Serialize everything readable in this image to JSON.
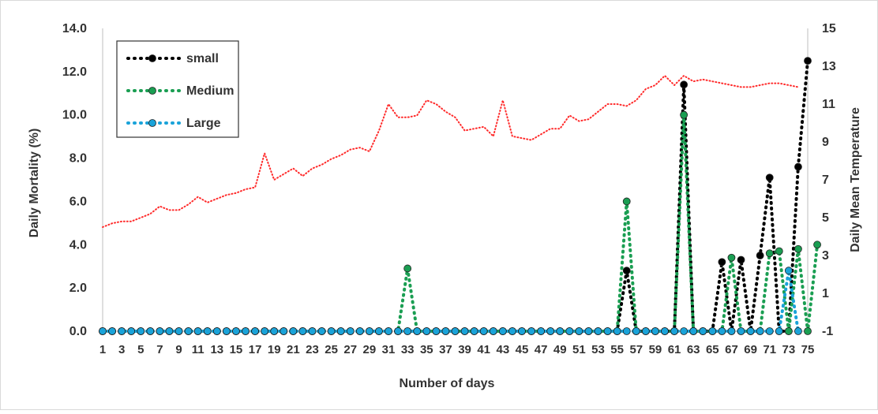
{
  "chart_data": {
    "type": "line",
    "xlabel": "Number of days",
    "ylabel": "Daily Mortality (%)",
    "y2label": "Daily Mean Temperature",
    "ylim": [
      0,
      14
    ],
    "y2lim": [
      -1,
      15
    ],
    "xlim": [
      1,
      75
    ],
    "yticks": [
      "0.0",
      "2.0",
      "4.0",
      "6.0",
      "8.0",
      "10.0",
      "12.0",
      "14.0"
    ],
    "y2ticks": [
      "-1",
      "1",
      "3",
      "5",
      "7",
      "9",
      "11",
      "13",
      "15"
    ],
    "xticks": [
      "1",
      "3",
      "5",
      "7",
      "9",
      "11",
      "13",
      "15",
      "17",
      "19",
      "21",
      "23",
      "25",
      "27",
      "29",
      "31",
      "33",
      "35",
      "37",
      "39",
      "41",
      "43",
      "45",
      "47",
      "49",
      "51",
      "53",
      "55",
      "57",
      "59",
      "61",
      "63",
      "65",
      "67",
      "69",
      "71",
      "73",
      "75"
    ],
    "grid": false,
    "legend_position": "top-left",
    "series": [
      {
        "name": "small",
        "color": "#000000",
        "marker": true,
        "axis": "left",
        "points": [
          [
            1,
            0
          ],
          [
            2,
            0
          ],
          [
            3,
            0
          ],
          [
            4,
            0
          ],
          [
            5,
            0
          ],
          [
            6,
            0
          ],
          [
            7,
            0
          ],
          [
            8,
            0
          ],
          [
            9,
            0
          ],
          [
            10,
            0
          ],
          [
            11,
            0
          ],
          [
            12,
            0
          ],
          [
            13,
            0
          ],
          [
            14,
            0
          ],
          [
            15,
            0
          ],
          [
            16,
            0
          ],
          [
            17,
            0
          ],
          [
            18,
            0
          ],
          [
            19,
            0
          ],
          [
            20,
            0
          ],
          [
            21,
            0
          ],
          [
            22,
            0
          ],
          [
            23,
            0
          ],
          [
            24,
            0
          ],
          [
            25,
            0
          ],
          [
            26,
            0
          ],
          [
            27,
            0
          ],
          [
            28,
            0
          ],
          [
            29,
            0
          ],
          [
            30,
            0
          ],
          [
            31,
            0
          ],
          [
            32,
            0
          ],
          [
            33,
            0
          ],
          [
            34,
            0
          ],
          [
            35,
            0
          ],
          [
            36,
            0
          ],
          [
            37,
            0
          ],
          [
            38,
            0
          ],
          [
            39,
            0
          ],
          [
            40,
            0
          ],
          [
            41,
            0
          ],
          [
            42,
            0
          ],
          [
            43,
            0
          ],
          [
            44,
            0
          ],
          [
            45,
            0
          ],
          [
            46,
            0
          ],
          [
            47,
            0
          ],
          [
            48,
            0
          ],
          [
            49,
            0
          ],
          [
            50,
            0
          ],
          [
            51,
            0
          ],
          [
            52,
            0
          ],
          [
            53,
            0
          ],
          [
            54,
            0
          ],
          [
            55,
            0
          ],
          [
            56,
            2.8
          ],
          [
            57,
            0
          ],
          [
            58,
            0
          ],
          [
            59,
            0
          ],
          [
            60,
            0
          ],
          [
            61,
            0
          ],
          [
            62,
            11.4
          ],
          [
            63,
            0
          ],
          [
            64,
            0
          ],
          [
            65,
            0
          ],
          [
            66,
            3.2
          ],
          [
            67,
            0
          ],
          [
            68,
            3.3
          ],
          [
            69,
            0
          ],
          [
            70,
            3.5
          ],
          [
            71,
            7.1
          ],
          [
            72,
            0
          ],
          [
            73,
            0
          ],
          [
            74,
            7.6
          ],
          [
            75,
            12.5
          ]
        ]
      },
      {
        "name": "Medium",
        "color": "#1a9e52",
        "marker": true,
        "axis": "left",
        "points": [
          [
            1,
            0
          ],
          [
            2,
            0
          ],
          [
            3,
            0
          ],
          [
            4,
            0
          ],
          [
            5,
            0
          ],
          [
            6,
            0
          ],
          [
            7,
            0
          ],
          [
            8,
            0
          ],
          [
            9,
            0
          ],
          [
            10,
            0
          ],
          [
            11,
            0
          ],
          [
            12,
            0
          ],
          [
            13,
            0
          ],
          [
            14,
            0
          ],
          [
            15,
            0
          ],
          [
            16,
            0
          ],
          [
            17,
            0
          ],
          [
            18,
            0
          ],
          [
            19,
            0
          ],
          [
            20,
            0
          ],
          [
            21,
            0
          ],
          [
            22,
            0
          ],
          [
            23,
            0
          ],
          [
            24,
            0
          ],
          [
            25,
            0
          ],
          [
            26,
            0
          ],
          [
            27,
            0
          ],
          [
            28,
            0
          ],
          [
            29,
            0
          ],
          [
            30,
            0
          ],
          [
            31,
            0
          ],
          [
            32,
            0
          ],
          [
            33,
            2.9
          ],
          [
            34,
            0
          ],
          [
            35,
            0
          ],
          [
            36,
            0
          ],
          [
            37,
            0
          ],
          [
            38,
            0
          ],
          [
            39,
            0
          ],
          [
            40,
            0
          ],
          [
            41,
            0
          ],
          [
            42,
            0
          ],
          [
            43,
            0
          ],
          [
            44,
            0
          ],
          [
            45,
            0
          ],
          [
            46,
            0
          ],
          [
            47,
            0
          ],
          [
            48,
            0
          ],
          [
            49,
            0
          ],
          [
            50,
            0
          ],
          [
            51,
            0
          ],
          [
            52,
            0
          ],
          [
            53,
            0
          ],
          [
            54,
            0
          ],
          [
            55,
            0
          ],
          [
            56,
            6.0
          ],
          [
            57,
            0
          ],
          [
            58,
            0
          ],
          [
            59,
            0
          ],
          [
            60,
            0
          ],
          [
            61,
            0
          ],
          [
            62,
            10.0
          ],
          [
            63,
            0
          ],
          [
            64,
            0
          ],
          [
            65,
            0
          ],
          [
            66,
            0
          ],
          [
            67,
            3.4
          ],
          [
            68,
            0
          ],
          [
            69,
            0
          ],
          [
            70,
            0
          ],
          [
            71,
            3.6
          ],
          [
            72,
            3.7
          ],
          [
            73,
            0
          ],
          [
            74,
            3.8
          ],
          [
            75,
            0
          ],
          [
            76,
            4.0
          ]
        ]
      },
      {
        "name": "Large",
        "color": "#1aa3d9",
        "marker": true,
        "axis": "left",
        "points": [
          [
            1,
            0
          ],
          [
            2,
            0
          ],
          [
            3,
            0
          ],
          [
            4,
            0
          ],
          [
            5,
            0
          ],
          [
            6,
            0
          ],
          [
            7,
            0
          ],
          [
            8,
            0
          ],
          [
            9,
            0
          ],
          [
            10,
            0
          ],
          [
            11,
            0
          ],
          [
            12,
            0
          ],
          [
            13,
            0
          ],
          [
            14,
            0
          ],
          [
            15,
            0
          ],
          [
            16,
            0
          ],
          [
            17,
            0
          ],
          [
            18,
            0
          ],
          [
            19,
            0
          ],
          [
            20,
            0
          ],
          [
            21,
            0
          ],
          [
            22,
            0
          ],
          [
            23,
            0
          ],
          [
            24,
            0
          ],
          [
            25,
            0
          ],
          [
            26,
            0
          ],
          [
            27,
            0
          ],
          [
            28,
            0
          ],
          [
            29,
            0
          ],
          [
            30,
            0
          ],
          [
            31,
            0
          ],
          [
            32,
            0
          ],
          [
            33,
            0
          ],
          [
            34,
            0
          ],
          [
            35,
            0
          ],
          [
            36,
            0
          ],
          [
            37,
            0
          ],
          [
            38,
            0
          ],
          [
            39,
            0
          ],
          [
            40,
            0
          ],
          [
            41,
            0
          ],
          [
            42,
            0
          ],
          [
            43,
            0
          ],
          [
            44,
            0
          ],
          [
            45,
            0
          ],
          [
            46,
            0
          ],
          [
            47,
            0
          ],
          [
            48,
            0
          ],
          [
            49,
            0
          ],
          [
            50,
            0
          ],
          [
            51,
            0
          ],
          [
            52,
            0
          ],
          [
            53,
            0
          ],
          [
            54,
            0
          ],
          [
            55,
            0
          ],
          [
            56,
            0
          ],
          [
            57,
            0
          ],
          [
            58,
            0
          ],
          [
            59,
            0
          ],
          [
            60,
            0
          ],
          [
            61,
            0
          ],
          [
            62,
            0
          ],
          [
            63,
            0
          ],
          [
            64,
            0
          ],
          [
            65,
            0
          ],
          [
            66,
            0
          ],
          [
            67,
            0
          ],
          [
            68,
            0
          ],
          [
            69,
            0
          ],
          [
            70,
            0
          ],
          [
            71,
            0
          ],
          [
            72,
            0
          ],
          [
            73,
            2.8
          ],
          [
            74,
            0
          ]
        ]
      },
      {
        "color": "#ff2a2a",
        "marker": false,
        "axis": "right",
        "points": [
          [
            1,
            4.5
          ],
          [
            2,
            4.7
          ],
          [
            3,
            4.8
          ],
          [
            4,
            4.8
          ],
          [
            5,
            5.0
          ],
          [
            6,
            5.2
          ],
          [
            7,
            5.6
          ],
          [
            8,
            5.4
          ],
          [
            9,
            5.4
          ],
          [
            10,
            5.7
          ],
          [
            11,
            6.1
          ],
          [
            12,
            5.8
          ],
          [
            13,
            6.0
          ],
          [
            14,
            6.2
          ],
          [
            15,
            6.3
          ],
          [
            16,
            6.5
          ],
          [
            17,
            6.6
          ],
          [
            18,
            8.4
          ],
          [
            19,
            7.0
          ],
          [
            20,
            7.3
          ],
          [
            21,
            7.6
          ],
          [
            22,
            7.2
          ],
          [
            23,
            7.6
          ],
          [
            24,
            7.8
          ],
          [
            25,
            8.1
          ],
          [
            26,
            8.3
          ],
          [
            27,
            8.6
          ],
          [
            28,
            8.7
          ],
          [
            29,
            8.5
          ],
          [
            30,
            9.6
          ],
          [
            31,
            11.0
          ],
          [
            32,
            10.3
          ],
          [
            33,
            10.3
          ],
          [
            34,
            10.4
          ],
          [
            35,
            11.2
          ],
          [
            36,
            11.0
          ],
          [
            37,
            10.6
          ],
          [
            38,
            10.3
          ],
          [
            39,
            9.6
          ],
          [
            40,
            9.7
          ],
          [
            41,
            9.8
          ],
          [
            42,
            9.3
          ],
          [
            43,
            11.2
          ],
          [
            44,
            9.3
          ],
          [
            45,
            9.2
          ],
          [
            46,
            9.1
          ],
          [
            47,
            9.4
          ],
          [
            48,
            9.7
          ],
          [
            49,
            9.7
          ],
          [
            50,
            10.4
          ],
          [
            51,
            10.1
          ],
          [
            52,
            10.2
          ],
          [
            53,
            10.6
          ],
          [
            54,
            11.0
          ],
          [
            55,
            11.0
          ],
          [
            56,
            10.9
          ],
          [
            57,
            11.2
          ],
          [
            58,
            11.8
          ],
          [
            59,
            12.0
          ],
          [
            60,
            12.5
          ],
          [
            61,
            12.0
          ],
          [
            62,
            12.5
          ],
          [
            63,
            12.2
          ],
          [
            64,
            12.3
          ],
          [
            65,
            12.2
          ],
          [
            66,
            12.1
          ],
          [
            67,
            12.0
          ],
          [
            68,
            11.9
          ],
          [
            69,
            11.9
          ],
          [
            70,
            12.0
          ],
          [
            71,
            12.1
          ],
          [
            72,
            12.1
          ],
          [
            73,
            12.0
          ],
          [
            74,
            11.9
          ]
        ]
      }
    ]
  }
}
